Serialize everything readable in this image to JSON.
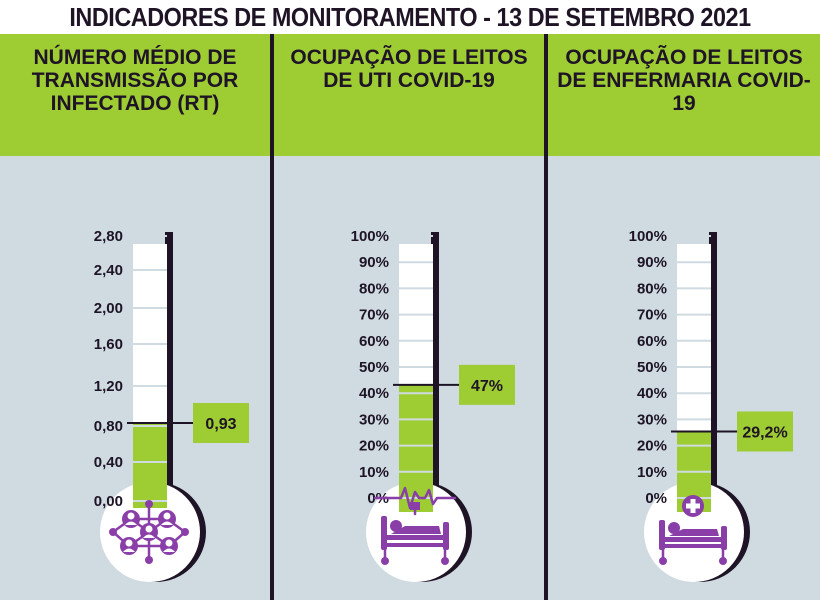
{
  "title": "INDICADORES DE MONITORAMENTO - 13 DE SETEMBRO 2021",
  "colors": {
    "header_green": "#9dcc33",
    "panel_bg": "#cfdbe1",
    "dark_purple": "#1e1426",
    "icon_purple": "#8a3fa8",
    "fill_green": "#9dcc33"
  },
  "chart_data": [
    {
      "type": "thermometer",
      "title": "NÚMERO MÉDIO DE TRANSMISSÃO POR INFECTADO (RT)",
      "ticks": [
        "0,00",
        "0,40",
        "0,80",
        "1,20",
        "1,60",
        "2,00",
        "2,40",
        "2,80"
      ],
      "ylim": [
        0,
        2.8
      ],
      "value": 0.93,
      "value_label": "0,93",
      "icon": "people-network-icon"
    },
    {
      "type": "thermometer",
      "title": "OCUPAÇÃO DE LEITOS DE UTI COVID-19",
      "ticks": [
        "0%",
        "10%",
        "20%",
        "30%",
        "40%",
        "50%",
        "60%",
        "70%",
        "80%",
        "90%",
        "100%"
      ],
      "ylim": [
        0,
        100
      ],
      "value": 47,
      "value_label": "47%",
      "icon": "icu-bed-monitor-icon"
    },
    {
      "type": "thermometer",
      "title": "OCUPAÇÃO DE LEITOS DE ENFERMARIA COVID-19",
      "ticks": [
        "0%",
        "10%",
        "20%",
        "30%",
        "40%",
        "50%",
        "60%",
        "70%",
        "80%",
        "90%",
        "100%"
      ],
      "ylim": [
        0,
        100
      ],
      "value": 29.2,
      "value_label": "29,2%",
      "icon": "ward-bed-cross-icon"
    }
  ]
}
